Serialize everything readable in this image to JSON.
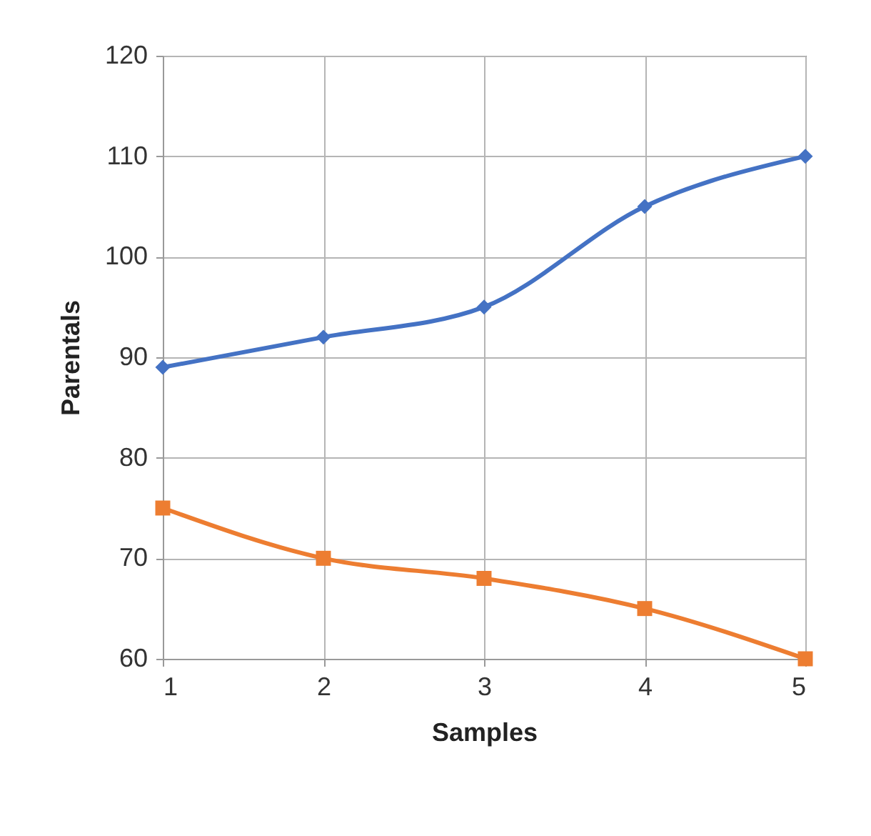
{
  "chart_data": {
    "type": "line",
    "xlabel": "Samples",
    "ylabel": "Parentals",
    "x": [
      1,
      2,
      3,
      4,
      5
    ],
    "series": [
      {
        "color": "#4472c4",
        "marker": "diamond",
        "values": [
          89,
          92,
          95,
          105,
          110
        ]
      },
      {
        "color": "#ed7d31",
        "marker": "square",
        "values": [
          75,
          70,
          68,
          65,
          60
        ]
      }
    ],
    "xlim": [
      1,
      5
    ],
    "xticks": [
      1,
      2,
      3,
      4,
      5
    ],
    "ylim": [
      60,
      120
    ],
    "yticks": [
      60,
      70,
      80,
      90,
      100,
      110,
      120
    ],
    "grid": true,
    "legend": false
  }
}
